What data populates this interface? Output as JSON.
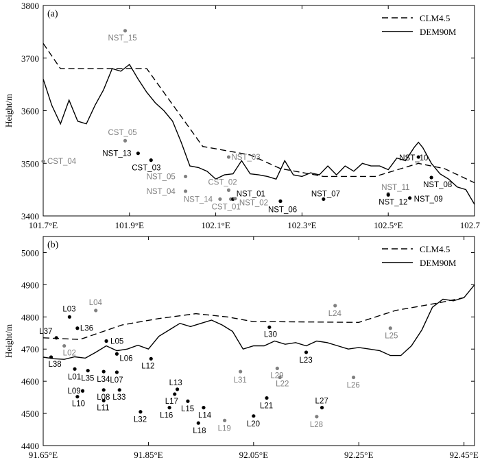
{
  "chart_data": [
    {
      "panel_label": "(a)",
      "type": "line",
      "ylabel": "Height/m",
      "xlabel": "",
      "xlim": [
        101.7,
        102.7
      ],
      "ylim": [
        3400,
        3800
      ],
      "xticks": [
        101.7,
        101.9,
        102.1,
        102.3,
        102.5,
        102.7
      ],
      "xtick_labels": [
        "101.7°E",
        "101.9°E",
        "102.1°E",
        "102.3°E",
        "102.5°E",
        "102.7°E"
      ],
      "yticks": [
        3400,
        3500,
        3600,
        3700,
        3800
      ],
      "ytick_labels": [
        "3400",
        "3500",
        "3600",
        "3700",
        "3800"
      ],
      "legend": {
        "placement": "top-right",
        "entries": [
          "CLM4.5",
          "DEM90M"
        ]
      },
      "series": [
        {
          "name": "CLM4.5",
          "style": "dashed",
          "x": [
            101.7,
            101.74,
            101.81,
            101.94,
            102.07,
            102.18,
            102.25,
            102.35,
            102.47,
            102.57,
            102.63,
            102.7
          ],
          "y": [
            3728,
            3680,
            3680,
            3680,
            3532,
            3516,
            3490,
            3475,
            3475,
            3500,
            3490,
            3463
          ]
        },
        {
          "name": "DEM90M",
          "style": "solid",
          "x": [
            101.7,
            101.72,
            101.74,
            101.76,
            101.78,
            101.8,
            101.82,
            101.84,
            101.86,
            101.88,
            101.9,
            101.92,
            101.94,
            101.96,
            101.98,
            102.0,
            102.02,
            102.04,
            102.06,
            102.08,
            102.1,
            102.12,
            102.14,
            102.16,
            102.18,
            102.2,
            102.22,
            102.24,
            102.26,
            102.28,
            102.3,
            102.32,
            102.34,
            102.36,
            102.38,
            102.4,
            102.42,
            102.44,
            102.46,
            102.48,
            102.5,
            102.52,
            102.54,
            102.56,
            102.57,
            102.58,
            102.6,
            102.62,
            102.64,
            102.66,
            102.68,
            102.7
          ],
          "y": [
            3660,
            3610,
            3575,
            3620,
            3580,
            3575,
            3610,
            3640,
            3680,
            3675,
            3688,
            3660,
            3635,
            3615,
            3600,
            3580,
            3540,
            3495,
            3492,
            3485,
            3470,
            3478,
            3480,
            3505,
            3480,
            3478,
            3475,
            3470,
            3505,
            3478,
            3475,
            3482,
            3478,
            3495,
            3478,
            3495,
            3485,
            3500,
            3495,
            3495,
            3488,
            3510,
            3505,
            3530,
            3540,
            3530,
            3500,
            3480,
            3470,
            3455,
            3450,
            3422
          ]
        }
      ],
      "stations": [
        {
          "label": "NST_15",
          "x": 101.89,
          "y": 3752,
          "color": "#808080"
        },
        {
          "label": "CST_04",
          "x": 101.7,
          "y": 3504,
          "color": "#808080"
        },
        {
          "label": "CST_05",
          "x": 101.89,
          "y": 3543,
          "color": "#808080"
        },
        {
          "label": "NST_13",
          "x": 101.92,
          "y": 3519,
          "color": "#000000"
        },
        {
          "label": "CST_03",
          "x": 101.95,
          "y": 3506,
          "color": "#000000"
        },
        {
          "label": "NST_05",
          "x": 102.03,
          "y": 3475,
          "color": "#808080"
        },
        {
          "label": "NST_04",
          "x": 102.03,
          "y": 3447,
          "color": "#808080"
        },
        {
          "label": "NST_14",
          "x": 102.11,
          "y": 3432,
          "color": "#808080"
        },
        {
          "label": "NST_03",
          "x": 102.13,
          "y": 3512,
          "color": "#808080"
        },
        {
          "label": "CST_02",
          "x": 102.13,
          "y": 3449,
          "color": "#808080"
        },
        {
          "label": "CST_01",
          "x": 102.135,
          "y": 3432,
          "color": "#808080"
        },
        {
          "label": "NST_01",
          "x": 102.14,
          "y": 3432,
          "color": "#000000"
        },
        {
          "label": "NST_02",
          "x": 102.145,
          "y": 3433,
          "color": "#808080"
        },
        {
          "label": "NST_06",
          "x": 102.25,
          "y": 3428,
          "color": "#000000"
        },
        {
          "label": "NST_07",
          "x": 102.35,
          "y": 3432,
          "color": "#000000"
        },
        {
          "label": "NST_10",
          "x": 102.57,
          "y": 3512,
          "color": "#000000"
        },
        {
          "label": "NST_11",
          "x": 102.5,
          "y": 3442,
          "color": "#808080"
        },
        {
          "label": "NST_12",
          "x": 102.5,
          "y": 3440,
          "color": "#000000"
        },
        {
          "label": "NST_08",
          "x": 102.6,
          "y": 3473,
          "color": "#000000"
        },
        {
          "label": "NST_09",
          "x": 102.55,
          "y": 3434,
          "color": "#000000"
        }
      ]
    },
    {
      "panel_label": "(b)",
      "type": "line",
      "ylabel": "Height/m",
      "xlabel": "",
      "xlim": [
        91.65,
        92.47
      ],
      "ylim": [
        4400,
        5050
      ],
      "xticks": [
        91.65,
        91.85,
        92.05,
        92.25,
        92.45
      ],
      "xtick_labels": [
        "91.65°E",
        "91.85°E",
        "92.05°E",
        "92.25°E",
        "92.45°E"
      ],
      "yticks": [
        4400,
        4500,
        4600,
        4700,
        4800,
        4900,
        5000
      ],
      "ytick_labels": [
        "4400",
        "4500",
        "4600",
        "4700",
        "4800",
        "4900",
        "5000"
      ],
      "legend": {
        "placement": "top-right",
        "entries": [
          "CLM4.5",
          "DEM90M"
        ]
      },
      "series": [
        {
          "name": "CLM4.5",
          "style": "dashed",
          "x": [
            91.65,
            91.72,
            91.8,
            91.87,
            91.94,
            92.0,
            92.05,
            92.1,
            92.25,
            92.32,
            92.4,
            92.45
          ],
          "y": [
            4735,
            4730,
            4775,
            4795,
            4810,
            4800,
            4785,
            4785,
            4783,
            4820,
            4843,
            4860
          ]
        },
        {
          "name": "DEM90M",
          "style": "solid",
          "x": [
            91.65,
            91.67,
            91.69,
            91.71,
            91.73,
            91.75,
            91.77,
            91.79,
            91.81,
            91.83,
            91.85,
            91.87,
            91.89,
            91.91,
            91.93,
            91.95,
            91.97,
            91.99,
            92.01,
            92.03,
            92.05,
            92.07,
            92.09,
            92.11,
            92.13,
            92.15,
            92.17,
            92.19,
            92.21,
            92.23,
            92.25,
            92.27,
            92.29,
            92.31,
            92.33,
            92.35,
            92.37,
            92.39,
            92.41,
            92.43,
            92.45,
            92.47
          ],
          "y": [
            4675,
            4670,
            4668,
            4676,
            4672,
            4690,
            4710,
            4695,
            4700,
            4712,
            4700,
            4740,
            4760,
            4780,
            4770,
            4780,
            4790,
            4775,
            4755,
            4700,
            4710,
            4710,
            4725,
            4715,
            4720,
            4710,
            4725,
            4720,
            4710,
            4700,
            4705,
            4700,
            4695,
            4680,
            4680,
            4710,
            4760,
            4830,
            4855,
            4850,
            4860,
            4900
          ]
        }
      ],
      "stations": [
        {
          "label": "L03",
          "x": 91.7,
          "y": 4800,
          "color": "#000000"
        },
        {
          "label": "L04",
          "x": 91.75,
          "y": 4820,
          "color": "#808080"
        },
        {
          "label": "L37",
          "x": 91.675,
          "y": 4735,
          "color": "#000000"
        },
        {
          "label": "L36",
          "x": 91.715,
          "y": 4765,
          "color": "#000000"
        },
        {
          "label": "L02",
          "x": 91.69,
          "y": 4710,
          "color": "#808080"
        },
        {
          "label": "L38",
          "x": 91.665,
          "y": 4675,
          "color": "#000000"
        },
        {
          "label": "L05",
          "x": 91.77,
          "y": 4725,
          "color": "#000000"
        },
        {
          "label": "L06",
          "x": 91.79,
          "y": 4685,
          "color": "#000000"
        },
        {
          "label": "L01",
          "x": 91.71,
          "y": 4638,
          "color": "#000000"
        },
        {
          "label": "L35",
          "x": 91.735,
          "y": 4633,
          "color": "#000000"
        },
        {
          "label": "L34",
          "x": 91.765,
          "y": 4630,
          "color": "#000000"
        },
        {
          "label": "L07",
          "x": 91.79,
          "y": 4628,
          "color": "#000000"
        },
        {
          "label": "L12",
          "x": 91.855,
          "y": 4670,
          "color": "#000000"
        },
        {
          "label": "L09",
          "x": 91.725,
          "y": 4570,
          "color": "#000000"
        },
        {
          "label": "L08",
          "x": 91.765,
          "y": 4573,
          "color": "#000000"
        },
        {
          "label": "L33",
          "x": 91.795,
          "y": 4573,
          "color": "#000000"
        },
        {
          "label": "L10",
          "x": 91.715,
          "y": 4552,
          "color": "#000000"
        },
        {
          "label": "L11",
          "x": 91.765,
          "y": 4540,
          "color": "#000000"
        },
        {
          "label": "L32",
          "x": 91.835,
          "y": 4505,
          "color": "#000000"
        },
        {
          "label": "L13",
          "x": 91.905,
          "y": 4575,
          "color": "#000000"
        },
        {
          "label": "L17",
          "x": 91.9,
          "y": 4560,
          "color": "#000000"
        },
        {
          "label": "L16",
          "x": 91.89,
          "y": 4518,
          "color": "#000000"
        },
        {
          "label": "L15",
          "x": 91.925,
          "y": 4538,
          "color": "#000000"
        },
        {
          "label": "L14",
          "x": 91.955,
          "y": 4518,
          "color": "#000000"
        },
        {
          "label": "L18",
          "x": 91.945,
          "y": 4470,
          "color": "#000000"
        },
        {
          "label": "L19",
          "x": 91.995,
          "y": 4478,
          "color": "#808080"
        },
        {
          "label": "L20",
          "x": 92.05,
          "y": 4492,
          "color": "#000000"
        },
        {
          "label": "L21",
          "x": 92.075,
          "y": 4548,
          "color": "#000000"
        },
        {
          "label": "L31",
          "x": 92.025,
          "y": 4630,
          "color": "#808080"
        },
        {
          "label": "L29",
          "x": 92.095,
          "y": 4640,
          "color": "#808080"
        },
        {
          "label": "L22",
          "x": 92.1,
          "y": 4612,
          "color": "#808080"
        },
        {
          "label": "L30",
          "x": 92.08,
          "y": 4768,
          "color": "#000000"
        },
        {
          "label": "L23",
          "x": 92.15,
          "y": 4690,
          "color": "#000000"
        },
        {
          "label": "L24",
          "x": 92.205,
          "y": 4835,
          "color": "#808080"
        },
        {
          "label": "L25",
          "x": 92.31,
          "y": 4765,
          "color": "#808080"
        },
        {
          "label": "L26",
          "x": 92.24,
          "y": 4612,
          "color": "#808080"
        },
        {
          "label": "L27",
          "x": 92.18,
          "y": 4518,
          "color": "#000000"
        },
        {
          "label": "L28",
          "x": 92.17,
          "y": 4490,
          "color": "#808080"
        }
      ]
    }
  ]
}
